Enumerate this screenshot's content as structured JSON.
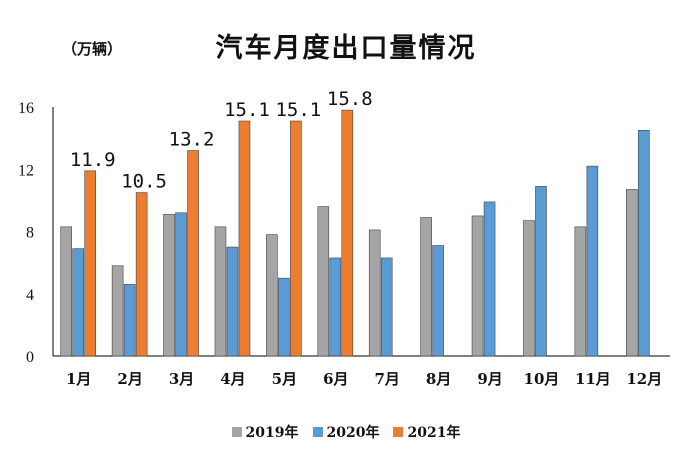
{
  "chart_data": {
    "type": "bar",
    "title": "汽车月度出口量情况",
    "unit_label": "（万辆）",
    "xlabel": "",
    "ylabel": "",
    "ylim": [
      0,
      16
    ],
    "yticks": [
      "0",
      "4",
      "8",
      "12",
      "16"
    ],
    "grid": false,
    "legend_position": "bottom",
    "categories": [
      "1月",
      "2月",
      "3月",
      "4月",
      "5月",
      "6月",
      "7月",
      "8月",
      "9月",
      "10月",
      "11月",
      "12月"
    ],
    "series": [
      {
        "name": "2019年",
        "color": "#a5a5a5",
        "values": [
          8.3,
          5.8,
          9.1,
          8.3,
          7.8,
          9.6,
          8.1,
          8.9,
          9.0,
          8.7,
          8.3,
          10.7
        ]
      },
      {
        "name": "2020年",
        "color": "#5b9bd5",
        "values": [
          6.9,
          4.6,
          9.2,
          7.0,
          5.0,
          6.3,
          6.3,
          7.1,
          9.9,
          10.9,
          12.2,
          14.5
        ]
      },
      {
        "name": "2021年",
        "color": "#ed7d31",
        "values": [
          11.9,
          10.5,
          13.2,
          15.1,
          15.1,
          15.8,
          null,
          null,
          null,
          null,
          null,
          null
        ],
        "data_labels": [
          "11.9",
          "10.5",
          "13.2",
          "15.1",
          "15.1",
          "15.8"
        ]
      }
    ]
  }
}
